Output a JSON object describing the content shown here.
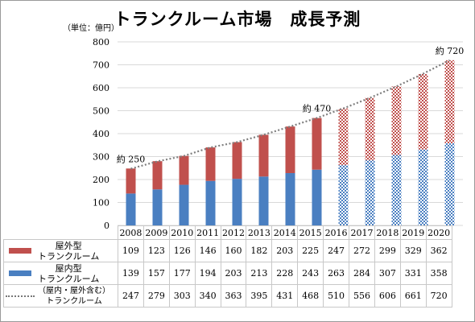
{
  "title": "トランクルーム市場　成長予測",
  "unit": "（単位：億円）",
  "chart_data": {
    "type": "bar",
    "stacked": true,
    "categories": [
      "2008",
      "2009",
      "2010",
      "2011",
      "2012",
      "2013",
      "2014",
      "2015",
      "2016",
      "2017",
      "2018",
      "2019",
      "2020"
    ],
    "forecast_from": "2016",
    "ylim": [
      0,
      800
    ],
    "yticks": [
      0,
      100,
      200,
      300,
      400,
      500,
      600,
      700,
      800
    ],
    "series": [
      {
        "name": "屋内型トランクルーム",
        "name_lines": [
          "屋内型",
          "トランクルーム"
        ],
        "color": "#4a7fc1",
        "values": [
          139,
          157,
          177,
          194,
          203,
          213,
          228,
          243,
          263,
          284,
          307,
          331,
          358
        ]
      },
      {
        "name": "屋外型トランクルーム",
        "name_lines": [
          "屋外型",
          "トランクルーム"
        ],
        "color": "#c0504d",
        "values": [
          109,
          123,
          126,
          146,
          160,
          182,
          203,
          225,
          247,
          272,
          299,
          329,
          362
        ]
      }
    ],
    "total_series": {
      "name": "（屋内・屋外含む）トランクルーム",
      "name_lines": [
        "（屋内・屋外含む）",
        "トランクルーム"
      ],
      "values": [
        247,
        279,
        303,
        340,
        363,
        395,
        431,
        468,
        510,
        556,
        606,
        661,
        720
      ]
    },
    "annotations": [
      {
        "category": "2008",
        "text": "約 250"
      },
      {
        "category": "2015",
        "text": "約 470"
      },
      {
        "category": "2020",
        "text": "約 720"
      }
    ]
  }
}
